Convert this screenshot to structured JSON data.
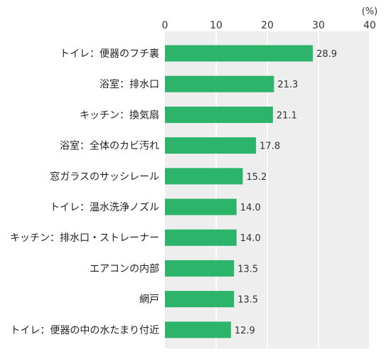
{
  "chart_data": {
    "type": "bar",
    "orientation": "horizontal",
    "unit": "(%)",
    "xlim": [
      0,
      40
    ],
    "ticks": [
      0,
      10,
      20,
      30,
      40
    ],
    "categories": [
      "トイレ：便器のフチ裏",
      "浴室：排水口",
      "キッチン：換気扇",
      "浴室：全体のカビ汚れ",
      "窓ガラスのサッシレール",
      "トイレ：温水洗浄ノズル",
      "キッチン：排水口・ストレーナー",
      "エアコンの内部",
      "網戸",
      "トイレ：便器の中の水たまり付近"
    ],
    "values": [
      28.9,
      21.3,
      21.1,
      17.8,
      15.2,
      14.0,
      14.0,
      13.5,
      13.5,
      12.9
    ],
    "value_labels": [
      "28.9",
      "21.3",
      "21.1",
      "17.8",
      "15.2",
      "14.0",
      "14.0",
      "13.5",
      "13.5",
      "12.9"
    ],
    "colors": {
      "bar": "#2bb46a",
      "plot_background": "#eeeeee",
      "gridline": "#ffffff"
    },
    "grid": true,
    "legend": "none"
  }
}
